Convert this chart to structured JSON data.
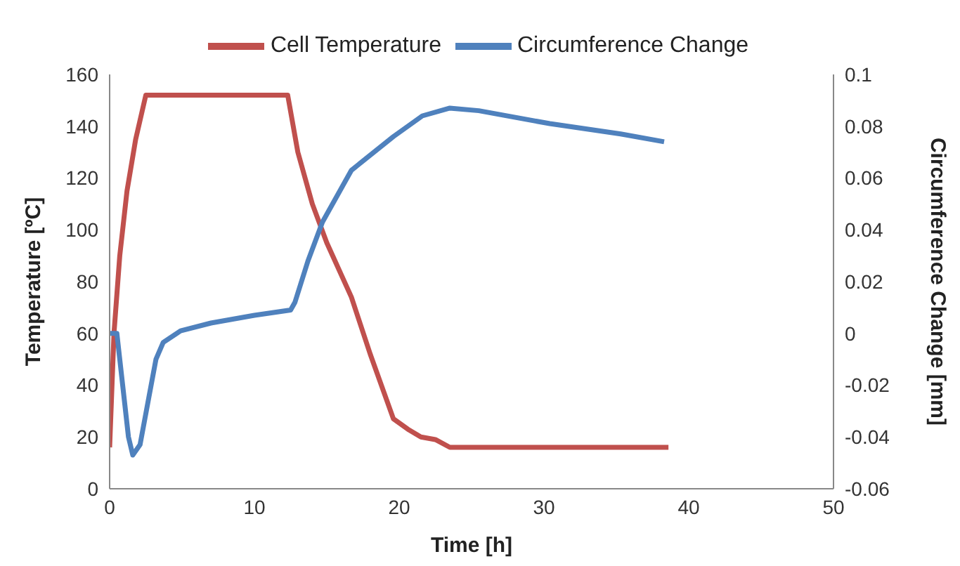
{
  "chart_data": {
    "type": "line",
    "xlabel": "Time [h]",
    "ylabel": "Temperature [ºC]",
    "y2label": "Circumference Change [mm]",
    "xlim": [
      0,
      50
    ],
    "xticks": [
      0,
      10,
      20,
      30,
      40,
      50
    ],
    "ylim": [
      0,
      160
    ],
    "yticks": [
      0,
      20,
      40,
      60,
      80,
      100,
      120,
      140,
      160
    ],
    "y2lim": [
      -0.06,
      0.1
    ],
    "y2ticks": [
      -0.06,
      -0.04,
      -0.02,
      0,
      0.02,
      0.04,
      0.06,
      0.08,
      0.1
    ],
    "legend": "top",
    "marker": "none",
    "line_style": "solid",
    "series": [
      {
        "name": "Cell Temperature",
        "color": "#c0504d",
        "x": [
          0,
          0.3,
          0.7,
          1.2,
          1.8,
          2.5,
          12.3,
          13,
          14,
          15,
          16.7,
          18,
          19.6,
          20.6,
          21.5,
          22.5,
          23.5,
          30,
          38.6
        ],
        "values": [
          16,
          60,
          90,
          115,
          135,
          152,
          152,
          130,
          110,
          95,
          74,
          52,
          27,
          23,
          20,
          19,
          16,
          16,
          16
        ]
      },
      {
        "name": "Circumference Change",
        "color": "#4f81bd",
        "axis": "y2",
        "x": [
          0,
          0.5,
          0.9,
          1.3,
          1.6,
          2.1,
          2.7,
          3.2,
          3.7,
          4.9,
          7,
          10,
          12.5,
          12.8,
          13.7,
          14.7,
          16.7,
          19.6,
          21.6,
          23.5,
          25.5,
          30.4,
          35.3,
          38.3
        ],
        "values": [
          0,
          0,
          -0.02,
          -0.04,
          -0.047,
          -0.043,
          -0.025,
          -0.01,
          -0.0035,
          0.001,
          0.004,
          0.007,
          0.009,
          0.012,
          0.028,
          0.043,
          0.063,
          0.076,
          0.084,
          0.087,
          0.086,
          0.081,
          0.077,
          0.074
        ]
      }
    ]
  }
}
